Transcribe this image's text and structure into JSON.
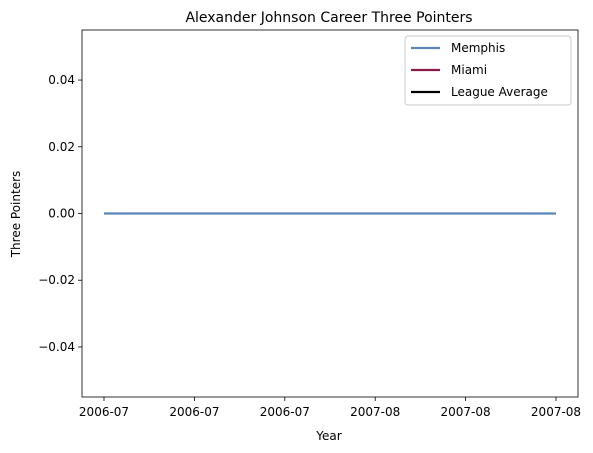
{
  "chart_data": {
    "type": "line",
    "title": "Alexander Johnson Career Three Pointers",
    "xlabel": "Year",
    "ylabel": "Three Pointers",
    "x_ticks": [
      "2006-07",
      "2006-07",
      "2006-07",
      "2007-08",
      "2007-08",
      "2007-08"
    ],
    "ylim": [
      -0.055,
      0.055
    ],
    "y_ticks": [
      "0.04",
      "0.02",
      "0.00",
      "−0.02",
      "−0.04"
    ],
    "y_tick_values": [
      0.04,
      0.02,
      0.0,
      -0.02,
      -0.04
    ],
    "legend_position": "top-right",
    "grid": false,
    "series": [
      {
        "name": "Memphis",
        "color": "#5b87b8",
        "x": [
          "2006-07",
          "2007-08"
        ],
        "values": [
          0,
          0
        ]
      },
      {
        "name": "Miami",
        "color": "#8b1a4a",
        "x": [],
        "values": []
      },
      {
        "name": "League Average",
        "color": "#000000",
        "x": [],
        "values": []
      }
    ]
  }
}
